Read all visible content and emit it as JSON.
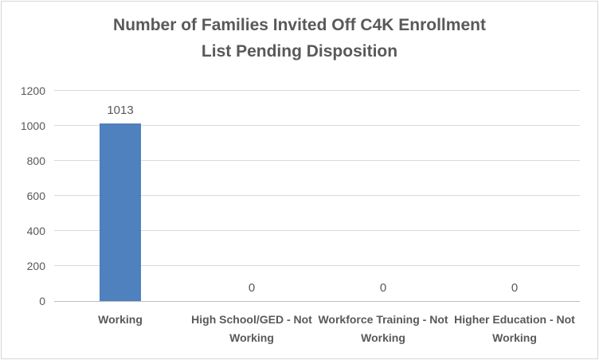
{
  "chart": {
    "title_lines": [
      "Number of Families Invited Off C4K Enrollment",
      "List Pending Disposition"
    ]
  },
  "chart_data": {
    "type": "bar",
    "title": "Number of Families Invited Off C4K Enrollment List Pending Disposition",
    "categories": [
      "Working",
      "High School/GED - Not Working",
      "Workforce Training - Not Working",
      "Higher Education - Not Working"
    ],
    "values": [
      1013,
      0,
      0,
      0
    ],
    "data_labels": [
      "1013",
      "0",
      "0",
      "0"
    ],
    "xlabel": "",
    "ylabel": "",
    "ylim": [
      0,
      1200
    ],
    "yticks": [
      0,
      200,
      400,
      600,
      800,
      1000,
      1200
    ],
    "grid": true,
    "legend": false,
    "bar_color": "#4e81bd",
    "gridline_color": "#d9d9d9",
    "axis_line_color": "#bfbfbf",
    "text_color": "#595959",
    "border_color": "#d7d7d7",
    "background_color": "#ffffff"
  }
}
